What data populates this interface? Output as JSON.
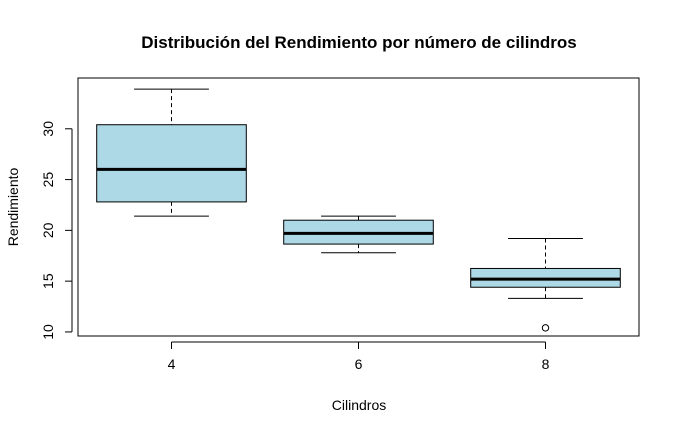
{
  "chart_data": {
    "type": "boxplot",
    "title": "Distribución del Rendimiento por número de cilindros",
    "xlabel": "Cilindros",
    "ylabel": "Rendimiento",
    "categories": [
      "4",
      "6",
      "8"
    ],
    "ylim": [
      9.6,
      35.0
    ],
    "yticks": [
      10,
      15,
      20,
      25,
      30
    ],
    "grid": false,
    "legend": "none",
    "box_color": "#ADD8E6",
    "boxes": [
      {
        "category": "4",
        "whisker_low": 21.4,
        "q1": 22.8,
        "median": 26.0,
        "q3": 30.4,
        "whisker_high": 33.9,
        "outliers": []
      },
      {
        "category": "6",
        "whisker_low": 17.8,
        "q1": 18.65,
        "median": 19.7,
        "q3": 21.0,
        "whisker_high": 21.4,
        "outliers": []
      },
      {
        "category": "8",
        "whisker_low": 13.3,
        "q1": 14.4,
        "median": 15.2,
        "q3": 16.25,
        "whisker_high": 19.2,
        "outliers": [
          10.4
        ]
      }
    ]
  }
}
